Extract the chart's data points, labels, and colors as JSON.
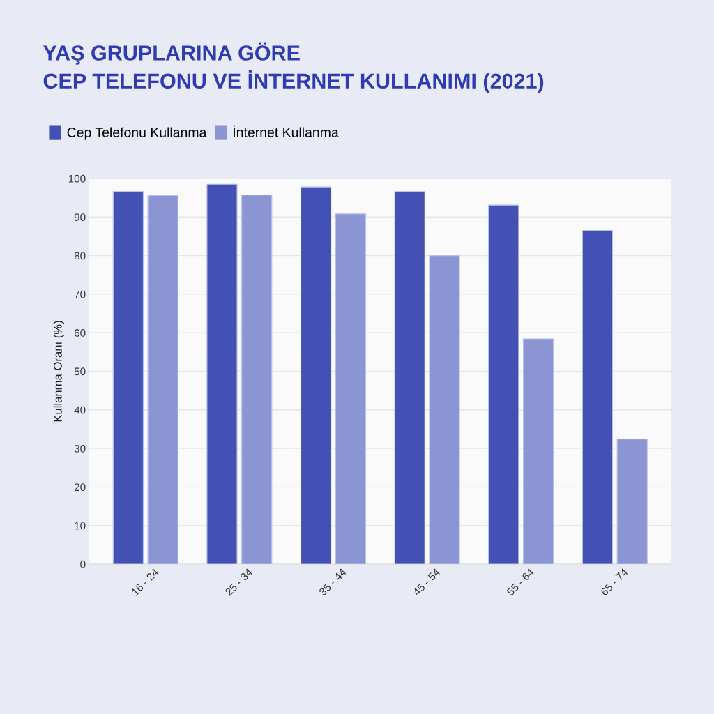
{
  "chart_data": {
    "type": "bar",
    "title": "YAŞ GRUPLARINA GÖRE\nCEP TELEFONU VE İNTERNET KULLANIMI (2021)",
    "ylabel": "Kullanma Oranı (%)",
    "categories": [
      "16 - 24",
      "25 - 34",
      "35 - 44",
      "45 - 54",
      "55 - 64",
      "65 - 74"
    ],
    "series": [
      {
        "name": "Cep Telefonu Kullanma",
        "color": "#4251b3",
        "values": [
          96.6,
          98.5,
          97.8,
          96.6,
          93.1,
          86.5
        ]
      },
      {
        "name": "İnternet Kullanma",
        "color": "#8c95d3",
        "values": [
          95.6,
          95.7,
          90.8,
          80.0,
          58.4,
          32.4
        ]
      }
    ],
    "ylim": [
      0,
      100
    ],
    "yticks": [
      0,
      10,
      20,
      30,
      40,
      50,
      60,
      70,
      80,
      90,
      100
    ],
    "grid": "y",
    "legend": "top left"
  }
}
